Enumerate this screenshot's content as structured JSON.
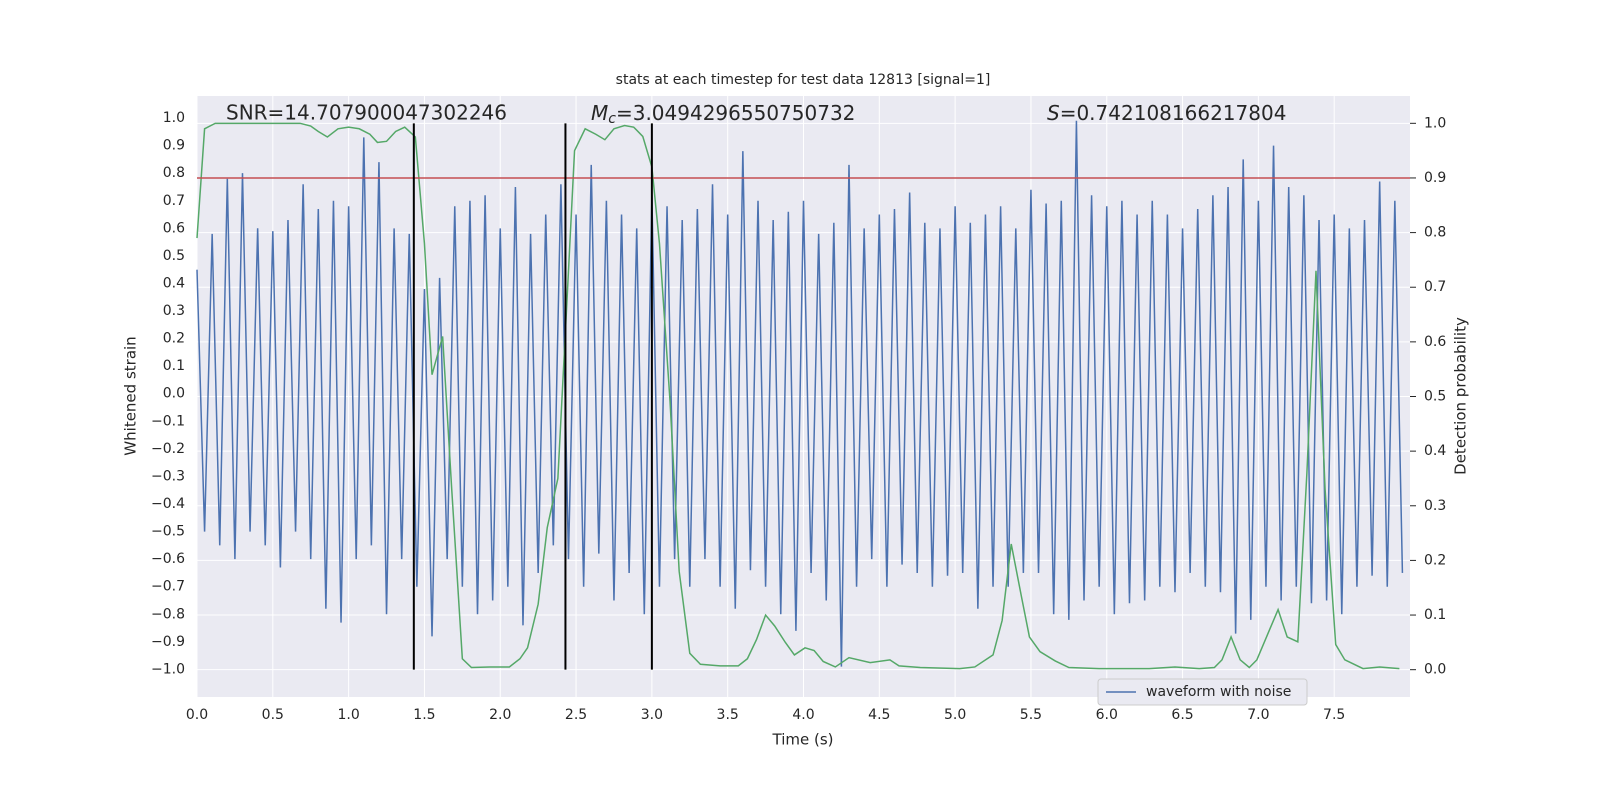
{
  "chart_data": {
    "type": "line",
    "title": "stats at each timestep for test data 12813 [signal=1]",
    "xlabel": "Time (s)",
    "ylabel": "Whitened strain",
    "y2label": "Detection probability",
    "annotations": [
      "SNR=14.707900047302246",
      "Mc=3.0494296550750732",
      "S=0.742108166217804"
    ],
    "xlim": [
      0,
      8
    ],
    "ylim": [
      -1.1,
      1.08
    ],
    "y2lim": [
      -0.05,
      1.05
    ],
    "xticks": [
      {
        "value": 0,
        "label": "0.0"
      },
      0.5,
      {
        "value": 1,
        "label": "1.0"
      },
      1.5,
      {
        "value": 2,
        "label": "2.0"
      },
      2.5,
      {
        "value": 3,
        "label": "3.0"
      },
      3.5,
      {
        "value": 4,
        "label": "4.0"
      },
      4.5,
      {
        "value": 5,
        "label": "5.0"
      },
      5.5,
      {
        "value": 6,
        "label": "6.0"
      },
      6.5,
      {
        "value": 7,
        "label": "7.0"
      },
      7.5
    ],
    "yticks": [
      {
        "value": -1,
        "label": "−1.0"
      },
      {
        "value": -0.9,
        "label": "−0.9"
      },
      {
        "value": -0.8,
        "label": "−0.8"
      },
      {
        "value": -0.7,
        "label": "−0.7"
      },
      {
        "value": -0.6,
        "label": "−0.6"
      },
      {
        "value": -0.5,
        "label": "−0.5"
      },
      {
        "value": -0.4,
        "label": "−0.4"
      },
      {
        "value": -0.3,
        "label": "−0.3"
      },
      {
        "value": -0.2,
        "label": "−0.2"
      },
      {
        "value": -0.1,
        "label": "−0.1"
      },
      {
        "value": 0,
        "label": "0.0"
      },
      0.1,
      0.2,
      0.3,
      0.4,
      0.5,
      0.6,
      0.7,
      0.8,
      0.9,
      {
        "value": 1,
        "label": "1.0"
      }
    ],
    "y2ticks": [
      {
        "value": 0,
        "label": "0.0"
      },
      0.1,
      0.2,
      0.3,
      0.4,
      0.5,
      0.6,
      0.7,
      0.8,
      0.9,
      {
        "value": 1,
        "label": "1.0"
      }
    ],
    "grid": true,
    "legend": "lower right",
    "threshold": {
      "value": 0.9,
      "axis": "y2",
      "color": "#c44e52"
    },
    "vlines": {
      "x": [
        1.43,
        2.43,
        3.0
      ],
      "span": [
        0,
        1
      ],
      "axis": "y2",
      "color": "#000000"
    },
    "series": [
      {
        "name": "waveform with noise",
        "color": "#4c72b0",
        "x": [
          0,
          0.05,
          0.1,
          0.15,
          0.2,
          0.25,
          0.3,
          0.35,
          0.4,
          0.45,
          0.5,
          0.55,
          0.6,
          0.65,
          0.7,
          0.75,
          0.8,
          0.85,
          0.9,
          0.95,
          1,
          1.05,
          1.1,
          1.15,
          1.2,
          1.25,
          1.3,
          1.35,
          1.4,
          1.45,
          1.5,
          1.55,
          1.6,
          1.65,
          1.7,
          1.75,
          1.8,
          1.85,
          1.9,
          1.95,
          2,
          2.05,
          2.1,
          2.15,
          2.2,
          2.25,
          2.3,
          2.35,
          2.4,
          2.45,
          2.5,
          2.55,
          2.6,
          2.65,
          2.7,
          2.75,
          2.8,
          2.85,
          2.9,
          2.95,
          3,
          3.05,
          3.1,
          3.15,
          3.2,
          3.25,
          3.3,
          3.35,
          3.4,
          3.45,
          3.5,
          3.55,
          3.6,
          3.65,
          3.7,
          3.75,
          3.8,
          3.85,
          3.9,
          3.95,
          4,
          4.05,
          4.1,
          4.15,
          4.2,
          4.25,
          4.3,
          4.35,
          4.4,
          4.45,
          4.5,
          4.55,
          4.6,
          4.65,
          4.7,
          4.75,
          4.8,
          4.85,
          4.9,
          4.95,
          5,
          5.05,
          5.1,
          5.15,
          5.2,
          5.25,
          5.3,
          5.35,
          5.4,
          5.45,
          5.5,
          5.55,
          5.6,
          5.65,
          5.7,
          5.75,
          5.8,
          5.85,
          5.9,
          5.95,
          6,
          6.05,
          6.1,
          6.15,
          6.2,
          6.25,
          6.3,
          6.35,
          6.4,
          6.45,
          6.5,
          6.55,
          6.6,
          6.65,
          6.7,
          6.75,
          6.8,
          6.85,
          6.9,
          6.95,
          7,
          7.05,
          7.1,
          7.15,
          7.2,
          7.25,
          7.3,
          7.35,
          7.4,
          7.45,
          7.5,
          7.55,
          7.6,
          7.65,
          7.7,
          7.75,
          7.8,
          7.85,
          7.9,
          7.95
        ],
        "values": [
          0.45,
          -0.5,
          0.58,
          -0.55,
          0.78,
          -0.6,
          0.8,
          -0.5,
          0.6,
          -0.55,
          0.59,
          -0.63,
          0.63,
          -0.5,
          0.76,
          -0.6,
          0.67,
          -0.78,
          0.7,
          -0.83,
          0.68,
          -0.6,
          0.93,
          -0.55,
          0.84,
          -0.8,
          0.6,
          -0.6,
          0.58,
          -0.7,
          0.38,
          -0.88,
          0.42,
          -0.6,
          0.68,
          -0.7,
          0.7,
          -0.8,
          0.72,
          -0.75,
          0.6,
          -0.7,
          0.75,
          -0.84,
          0.58,
          -0.65,
          0.65,
          -0.55,
          0.76,
          -0.6,
          0.65,
          -0.7,
          0.83,
          -0.58,
          0.7,
          -0.75,
          0.65,
          -0.65,
          0.6,
          -0.8,
          0.72,
          -0.7,
          0.68,
          -0.6,
          0.63,
          -0.7,
          0.67,
          -0.6,
          0.76,
          -0.7,
          0.65,
          -0.78,
          0.88,
          -0.64,
          0.7,
          -0.7,
          0.63,
          -0.8,
          0.66,
          -0.86,
          0.7,
          -0.65,
          0.58,
          -0.75,
          0.62,
          -0.99,
          0.83,
          -0.7,
          0.6,
          -0.6,
          0.65,
          -0.7,
          0.67,
          -0.62,
          0.73,
          -0.65,
          0.62,
          -0.7,
          0.6,
          -0.66,
          0.68,
          -0.65,
          0.62,
          -0.78,
          0.65,
          -0.7,
          0.68,
          -0.7,
          0.6,
          -0.65,
          0.74,
          -0.65,
          0.69,
          -0.8,
          0.7,
          -0.82,
          0.99,
          -0.75,
          0.72,
          -0.7,
          0.68,
          -0.8,
          0.7,
          -0.76,
          0.65,
          -0.75,
          0.7,
          -0.7,
          0.65,
          -0.72,
          0.6,
          -0.65,
          0.67,
          -0.7,
          0.72,
          -0.72,
          0.75,
          -0.87,
          0.85,
          -0.82,
          0.7,
          -0.7,
          0.9,
          -0.75,
          0.75,
          -0.7,
          0.72,
          -0.76,
          0.63,
          -0.75,
          0.65,
          -0.8,
          0.6,
          -0.7,
          0.63,
          -0.66,
          0.77,
          -0.7,
          0.7,
          -0.65
        ]
      },
      {
        "color": "#55a868",
        "axis": "y2",
        "x": [
          0,
          0.05,
          0.12,
          0.68,
          0.75,
          0.8,
          0.86,
          0.93,
          1,
          1.07,
          1.14,
          1.19,
          1.25,
          1.31,
          1.37,
          1.44,
          1.5,
          1.55,
          1.62,
          1.68,
          1.75,
          1.81,
          1.93,
          2.06,
          2.13,
          2.18,
          2.25,
          2.31,
          2.38,
          2.43,
          2.49,
          2.56,
          2.63,
          2.69,
          2.75,
          2.82,
          2.88,
          2.94,
          3,
          3.05,
          3.12,
          3.18,
          3.25,
          3.32,
          3.45,
          3.57,
          3.63,
          3.69,
          3.75,
          3.81,
          3.88,
          3.94,
          4.01,
          4.07,
          4.13,
          4.21,
          4.3,
          4.44,
          4.57,
          4.63,
          4.77,
          5.03,
          5.13,
          5.25,
          5.31,
          5.37,
          5.44,
          5.49,
          5.56,
          5.66,
          5.75,
          5.95,
          6.28,
          6.45,
          6.61,
          6.71,
          6.76,
          6.82,
          6.88,
          6.94,
          6.99,
          7.06,
          7.13,
          7.19,
          7.26,
          7.32,
          7.38,
          7.44,
          7.51,
          7.57,
          7.69,
          7.8,
          7.93
        ],
        "values": [
          0.79,
          0.99,
          1,
          1,
          0.995,
          0.985,
          0.975,
          0.99,
          0.993,
          0.99,
          0.98,
          0.965,
          0.967,
          0.985,
          0.993,
          0.975,
          0.78,
          0.54,
          0.61,
          0.33,
          0.02,
          0.004,
          0.005,
          0.005,
          0.02,
          0.04,
          0.12,
          0.26,
          0.35,
          0.62,
          0.95,
          0.99,
          0.98,
          0.97,
          0.99,
          0.996,
          0.993,
          0.976,
          0.92,
          0.78,
          0.49,
          0.18,
          0.03,
          0.01,
          0.007,
          0.007,
          0.02,
          0.055,
          0.1,
          0.08,
          0.05,
          0.027,
          0.04,
          0.035,
          0.015,
          0.005,
          0.022,
          0.013,
          0.018,
          0.007,
          0.004,
          0.002,
          0.005,
          0.027,
          0.09,
          0.23,
          0.13,
          0.06,
          0.033,
          0.016,
          0.004,
          0.002,
          0.002,
          0.005,
          0.002,
          0.004,
          0.018,
          0.06,
          0.018,
          0.004,
          0.018,
          0.064,
          0.11,
          0.06,
          0.051,
          0.36,
          0.73,
          0.33,
          0.046,
          0.018,
          0.002,
          0.005,
          0.002
        ]
      }
    ]
  }
}
